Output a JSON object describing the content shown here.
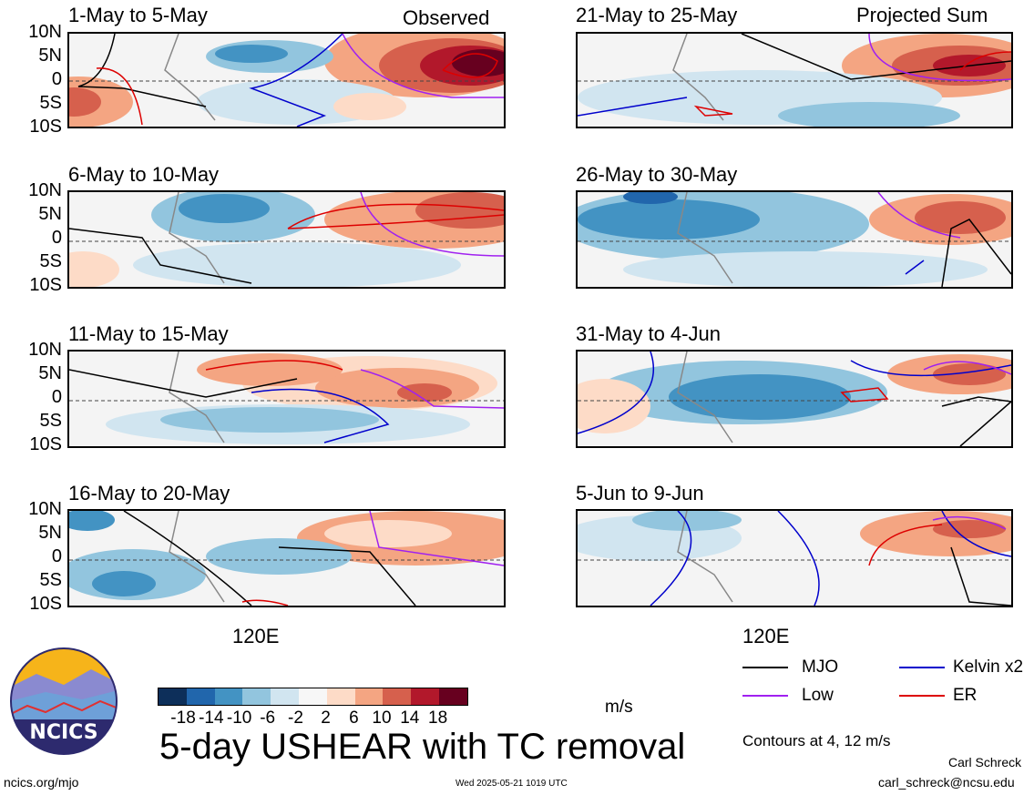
{
  "panels_left": [
    {
      "title": "1-May to 5-May",
      "right_label": "Observed",
      "show_xlabel": false
    },
    {
      "title": "6-May to 10-May",
      "right_label": "",
      "show_xlabel": false
    },
    {
      "title": "11-May to 15-May",
      "right_label": "",
      "show_xlabel": false
    },
    {
      "title": "16-May to 20-May",
      "right_label": "",
      "show_xlabel": true
    }
  ],
  "panels_right": [
    {
      "title": "21-May to 25-May",
      "right_label": "Projected Sum"
    },
    {
      "title": "26-May to 30-May",
      "right_label": ""
    },
    {
      "title": "31-May to 4-Jun",
      "right_label": ""
    },
    {
      "title": "5-Jun to 9-Jun",
      "right_label": ""
    }
  ],
  "y_ticks": [
    "10N",
    "5N",
    "0",
    "5S",
    "10S"
  ],
  "x_tick": "120E",
  "colorbar": {
    "colors": [
      "#0d2f5a",
      "#2166ac",
      "#4393c3",
      "#92c5de",
      "#d1e5f0",
      "#f7f7f7",
      "#fddbc7",
      "#f4a582",
      "#d6604d",
      "#b2182b",
      "#67001f"
    ],
    "labels": [
      "-18",
      "-14",
      "-10",
      "-6",
      "-2",
      "2",
      "6",
      "10",
      "14",
      "18"
    ],
    "units": "m/s"
  },
  "legend": {
    "items": [
      {
        "label": "MJO",
        "color": "#000000"
      },
      {
        "label": "Kelvin x2",
        "color": "#0000cc"
      },
      {
        "label": "Low",
        "color": "#a020f0"
      },
      {
        "label": "ER",
        "color": "#dd0000"
      }
    ],
    "contours_note": "Contours at 4, 12 m/s"
  },
  "title": "5-day USHEAR with TC removal",
  "logo_text": "NCICS",
  "url": "ncics.org/mjo",
  "timestamp": "Wed 2025-05-21 1019 UTC",
  "author": "Carl Schreck",
  "email": "carl_schreck@ncsu.edu"
}
